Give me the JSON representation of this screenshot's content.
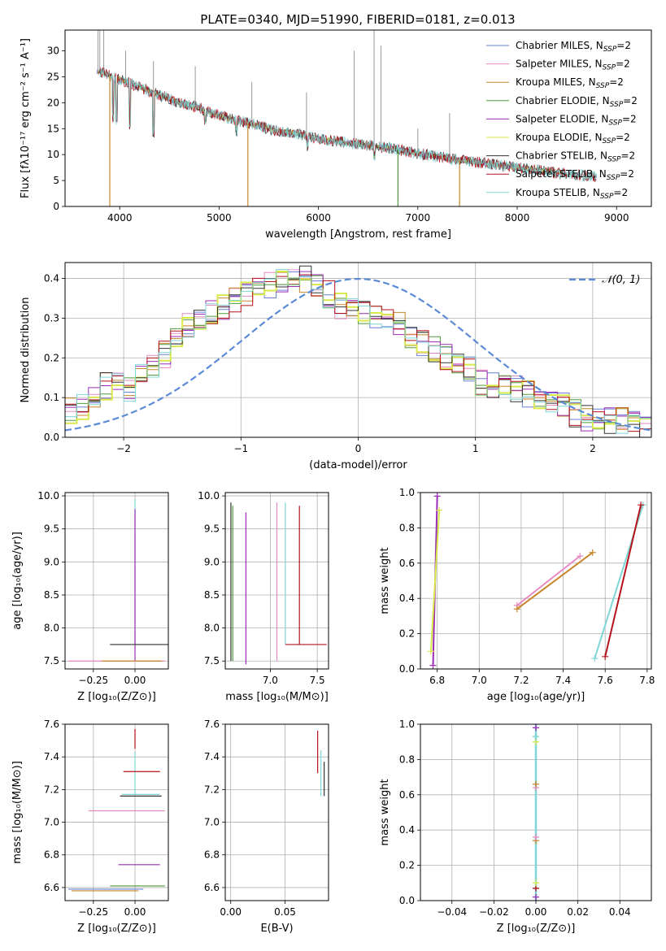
{
  "chart_data": [
    {
      "type": "line",
      "panel": "spectrum",
      "title": "PLATE=0340, MJD=51990, FIBERID=0181, z=0.013",
      "xlabel": "wavelength [Angstrom, rest frame]",
      "ylabel": "Flux [fλ10⁻¹⁷ erg cm⁻² s⁻¹ A⁻¹]",
      "xlim": [
        3450,
        9350
      ],
      "ylim": [
        0,
        34
      ],
      "xticks": [
        "4000",
        "5000",
        "6000",
        "7000",
        "8000",
        "9000"
      ],
      "yticks": [
        "0",
        "5",
        "10",
        "15",
        "20",
        "25",
        "30"
      ],
      "grid": false,
      "legend_position": "top-right",
      "data_x": [
        3800,
        4000,
        4200,
        4400,
        4600,
        4800,
        5000,
        5200,
        5400,
        5600,
        5800,
        6000,
        6200,
        6400,
        6600,
        6800,
        7000,
        7200,
        7400,
        7600,
        7800,
        8000,
        8200,
        8400,
        8600,
        8800
      ],
      "data_y": [
        26,
        24.5,
        23,
        21.5,
        20,
        19,
        17.5,
        16.5,
        15.5,
        14.5,
        14,
        13,
        12.5,
        12,
        11.5,
        11,
        10.2,
        9.6,
        9,
        8.5,
        8,
        7.5,
        7,
        6.5,
        6.1,
        5.7
      ],
      "series": [
        {
          "name": "Chabrier MILES, N",
          "sub": "SSP",
          "suffix": "=2",
          "color": "#6a7fd6"
        },
        {
          "name": "Salpeter MILES, N",
          "sub": "SSP",
          "suffix": "=2",
          "color": "#e78ac3"
        },
        {
          "name": "Kroupa MILES, N",
          "sub": "SSP",
          "suffix": "=2",
          "color": "#c8862a"
        },
        {
          "name": "Chabrier ELODIE, N",
          "sub": "SSP",
          "suffix": "=2",
          "color": "#4e9a3a"
        },
        {
          "name": "Salpeter ELODIE, N",
          "sub": "SSP",
          "suffix": "=2",
          "color": "#9b2fb5"
        },
        {
          "name": "Kroupa ELODIE, N",
          "sub": "SSP",
          "suffix": "=2",
          "color": "#d9e84a"
        },
        {
          "name": "Chabrier STELIB, N",
          "sub": "SSP",
          "suffix": "=2",
          "color": "#333333"
        },
        {
          "name": "Salpeter STELIB, N",
          "sub": "SSP",
          "suffix": "=2",
          "color": "#b5121b"
        },
        {
          "name": "Kroupa STELIB, N",
          "sub": "SSP",
          "suffix": "=2",
          "color": "#7fd6d6"
        }
      ]
    },
    {
      "type": "line",
      "panel": "residuals",
      "xlabel": "(data-model)/error",
      "ylabel": "Normed distribution",
      "xlim": [
        -2.5,
        2.5
      ],
      "ylim": [
        0,
        0.44
      ],
      "xticks": [
        "−2",
        "−1",
        "0",
        "1",
        "2"
      ],
      "yticks": [
        "0.0",
        "0.1",
        "0.2",
        "0.3",
        "0.4"
      ],
      "grid": true,
      "legend_position": "top-right",
      "legend": "𝒩(0, 1)",
      "reference_curve": {
        "mu": 0,
        "sigma": 1,
        "color": "#5b8bd6"
      },
      "histogram_bin_centers": [
        -2.45,
        -2.35,
        -2.25,
        -2.15,
        -2.05,
        -1.95,
        -1.85,
        -1.75,
        -1.65,
        -1.55,
        -1.45,
        -1.35,
        -1.25,
        -1.15,
        -1.05,
        -0.95,
        -0.85,
        -0.75,
        -0.65,
        -0.55,
        -0.45,
        -0.35,
        -0.25,
        -0.15,
        -0.05,
        0.05,
        0.15,
        0.25,
        0.35,
        0.45,
        0.55,
        0.65,
        0.75,
        0.85,
        0.95,
        1.05,
        1.15,
        1.25,
        1.35,
        1.45,
        1.55,
        1.65,
        1.75,
        1.85,
        1.95,
        2.05,
        2.15,
        2.25,
        2.35,
        2.45
      ],
      "histogram_values": [
        0.07,
        0.08,
        0.1,
        0.13,
        0.13,
        0.12,
        0.15,
        0.18,
        0.21,
        0.25,
        0.28,
        0.3,
        0.32,
        0.33,
        0.35,
        0.36,
        0.37,
        0.38,
        0.39,
        0.4,
        0.4,
        0.39,
        0.36,
        0.33,
        0.32,
        0.32,
        0.31,
        0.3,
        0.28,
        0.26,
        0.24,
        0.22,
        0.2,
        0.18,
        0.17,
        0.14,
        0.13,
        0.12,
        0.12,
        0.11,
        0.1,
        0.09,
        0.08,
        0.06,
        0.05,
        0.05,
        0.04,
        0.04,
        0.03,
        0.03
      ]
    },
    {
      "type": "scatter",
      "panel": "age_vs_Z",
      "xlabel": "Z [log₁₀(Z/Z⊙)]",
      "ylabel": "age  [log₁₀(age/yr)]",
      "xlim": [
        -0.42,
        0.2
      ],
      "ylim": [
        7.38,
        10.05
      ],
      "xticks": [
        "−0.25",
        "0.00"
      ],
      "yticks": [
        "7.5",
        "8.0",
        "8.5",
        "9.0",
        "9.5",
        "10.0"
      ],
      "grid": true,
      "segments": [
        {
          "z": 0,
          "age_min": 7.75,
          "age_max": 9.95,
          "color": "#7fd6d6"
        },
        {
          "z": 0,
          "age_min": 7.5,
          "age_max": 9.8,
          "color": "#9b2fb5"
        },
        {
          "z_min": -0.4,
          "z_max": 0.18,
          "age": 7.5,
          "color": "#e78ac3"
        },
        {
          "z_min": -0.2,
          "z_max": 0.16,
          "age": 7.5,
          "color": "#c8862a"
        },
        {
          "z_min": -0.15,
          "z_max": 0.2,
          "age": 7.75,
          "color": "#333333"
        }
      ]
    },
    {
      "type": "scatter",
      "panel": "age_vs_mass",
      "xlabel": "mass [log₁₀(M/M⊙)]",
      "ylim": [
        7.38,
        10.05
      ],
      "xlim": [
        6.52,
        7.62
      ],
      "xticks": [
        "7.0",
        "7.5"
      ],
      "yticks": [
        "7.5",
        "8.0",
        "8.5",
        "9.0",
        "9.5",
        "10.0"
      ],
      "grid": true,
      "segments": [
        {
          "mass": 6.58,
          "age_min": 7.5,
          "age_max": 9.9,
          "color": "#333333"
        },
        {
          "mass": 6.6,
          "age_min": 7.5,
          "age_max": 9.85,
          "color": "#4e9a3a"
        },
        {
          "mass": 6.74,
          "age_min": 7.45,
          "age_max": 9.75,
          "color": "#9b2fb5"
        },
        {
          "mass": 7.07,
          "age_min": 7.5,
          "age_max": 9.9,
          "color": "#e78ac3"
        },
        {
          "mass": 7.16,
          "age_min": 7.75,
          "age_max": 9.9,
          "color": "#7fd6d6"
        },
        {
          "mass": 7.31,
          "age_min": 7.75,
          "age_max": 9.85,
          "color": "#b5121b"
        },
        {
          "mass_min": 7.16,
          "mass_max": 7.6,
          "age": 7.75,
          "color": "#b5121b"
        }
      ]
    },
    {
      "type": "line",
      "panel": "weight_vs_age",
      "xlabel": "age  [log₁₀(age/yr)]",
      "ylabel": "mass weight",
      "xlim": [
        6.72,
        7.82
      ],
      "ylim": [
        0,
        1
      ],
      "xticks": [
        "6.8",
        "7.0",
        "7.2",
        "7.4",
        "7.6",
        "7.8"
      ],
      "yticks": [
        "0.0",
        "0.2",
        "0.4",
        "0.6",
        "0.8",
        "1.0"
      ],
      "grid": true,
      "lines": [
        {
          "x": [
            6.78,
            6.8
          ],
          "y": [
            0.02,
            0.98
          ],
          "color": "#9b2fb5"
        },
        {
          "x": [
            6.77,
            6.81
          ],
          "y": [
            0.1,
            0.9
          ],
          "color": "#d9e84a"
        },
        {
          "x": [
            7.18,
            7.48
          ],
          "y": [
            0.36,
            0.64
          ],
          "color": "#e78ac3"
        },
        {
          "x": [
            7.18,
            7.54
          ],
          "y": [
            0.34,
            0.66
          ],
          "color": "#c8862a"
        },
        {
          "x": [
            7.55,
            7.78
          ],
          "y": [
            0.06,
            0.93
          ],
          "color": "#7fd6d6"
        },
        {
          "x": [
            7.6,
            7.77
          ],
          "y": [
            0.07,
            0.93
          ],
          "color": "#b5121b"
        }
      ]
    },
    {
      "type": "scatter",
      "panel": "mass_vs_Z",
      "xlabel": "Z [log₁₀(Z/Z⊙)]",
      "ylabel": "mass [log₁₀(M/M⊙)]",
      "xlim": [
        -0.42,
        0.2
      ],
      "ylim": [
        6.52,
        7.6
      ],
      "xticks": [
        "−0.25",
        "0.00"
      ],
      "yticks": [
        "6.6",
        "6.8",
        "7.0",
        "7.2",
        "7.4",
        "7.6"
      ],
      "grid": true,
      "segments": [
        {
          "z": 0,
          "m_min": 7.45,
          "m_max": 7.57,
          "color": "#b5121b"
        },
        {
          "z": 0,
          "m_min": 7.17,
          "m_max": 7.43,
          "color": "#7fd6d6"
        },
        {
          "z_min": -0.07,
          "z_max": 0.15,
          "m": 7.31,
          "color": "#b5121b"
        },
        {
          "z_min": -0.08,
          "z_max": 0.15,
          "m": 7.17,
          "color": "#7fd6d6"
        },
        {
          "z_min": -0.09,
          "z_max": 0.16,
          "m": 7.16,
          "color": "#333333"
        },
        {
          "z_min": -0.28,
          "z_max": 0.18,
          "m": 7.07,
          "color": "#e78ac3"
        },
        {
          "z_min": -0.1,
          "z_max": 0.15,
          "m": 6.74,
          "color": "#9b2fb5"
        },
        {
          "z_min": -0.15,
          "z_max": 0.18,
          "m": 6.61,
          "color": "#4e9a3a"
        },
        {
          "z_min": -0.4,
          "z_max": 0.05,
          "m": 6.59,
          "color": "#6a7fd6"
        },
        {
          "z_min": -0.38,
          "z_max": 0.02,
          "m": 6.58,
          "color": "#c8862a"
        }
      ]
    },
    {
      "type": "scatter",
      "panel": "mass_vs_EBV",
      "xlabel": "E(B-V)",
      "xlim": [
        -0.005,
        0.09
      ],
      "ylim": [
        6.52,
        7.6
      ],
      "xticks": [
        "0.00",
        "0.05"
      ],
      "yticks": [
        "6.6",
        "6.8",
        "7.0",
        "7.2",
        "7.4",
        "7.6"
      ],
      "grid": true,
      "segments": [
        {
          "ebv": 0.08,
          "m_min": 7.3,
          "m_max": 7.56,
          "color": "#b5121b"
        },
        {
          "ebv": 0.083,
          "m_min": 7.16,
          "m_max": 7.44,
          "color": "#7fd6d6"
        },
        {
          "ebv": 0.086,
          "m_min": 7.16,
          "m_max": 7.37,
          "color": "#333333"
        }
      ]
    },
    {
      "type": "scatter",
      "panel": "weight_vs_Z",
      "xlabel": "Z [log₁₀(Z/Z⊙)]",
      "ylabel": "mass weight",
      "xlim": [
        -0.055,
        0.055
      ],
      "ylim": [
        0,
        1
      ],
      "xticks": [
        "−0.04",
        "−0.02",
        "0.00",
        "0.02",
        "0.04"
      ],
      "yticks": [
        "0.0",
        "0.2",
        "0.4",
        "0.6",
        "0.8",
        "1.0"
      ],
      "grid": true,
      "points": [
        {
          "z": 0,
          "w": 0.02,
          "color": "#9b2fb5"
        },
        {
          "z": 0,
          "w": 0.07,
          "color": "#b5121b"
        },
        {
          "z": 0,
          "w": 0.1,
          "color": "#d9e84a"
        },
        {
          "z": 0,
          "w": 0.34,
          "color": "#c8862a"
        },
        {
          "z": 0,
          "w": 0.36,
          "color": "#e78ac3"
        },
        {
          "z": 0,
          "w": 0.64,
          "color": "#e78ac3"
        },
        {
          "z": 0,
          "w": 0.66,
          "color": "#c8862a"
        },
        {
          "z": 0,
          "w": 0.9,
          "color": "#d9e84a"
        },
        {
          "z": 0,
          "w": 0.93,
          "color": "#7fd6d6"
        },
        {
          "z": 0,
          "w": 0.98,
          "color": "#9b2fb5"
        }
      ],
      "line": {
        "z": 0,
        "w_min": 0,
        "w_max": 1,
        "color": "#7fd6d6"
      }
    }
  ]
}
